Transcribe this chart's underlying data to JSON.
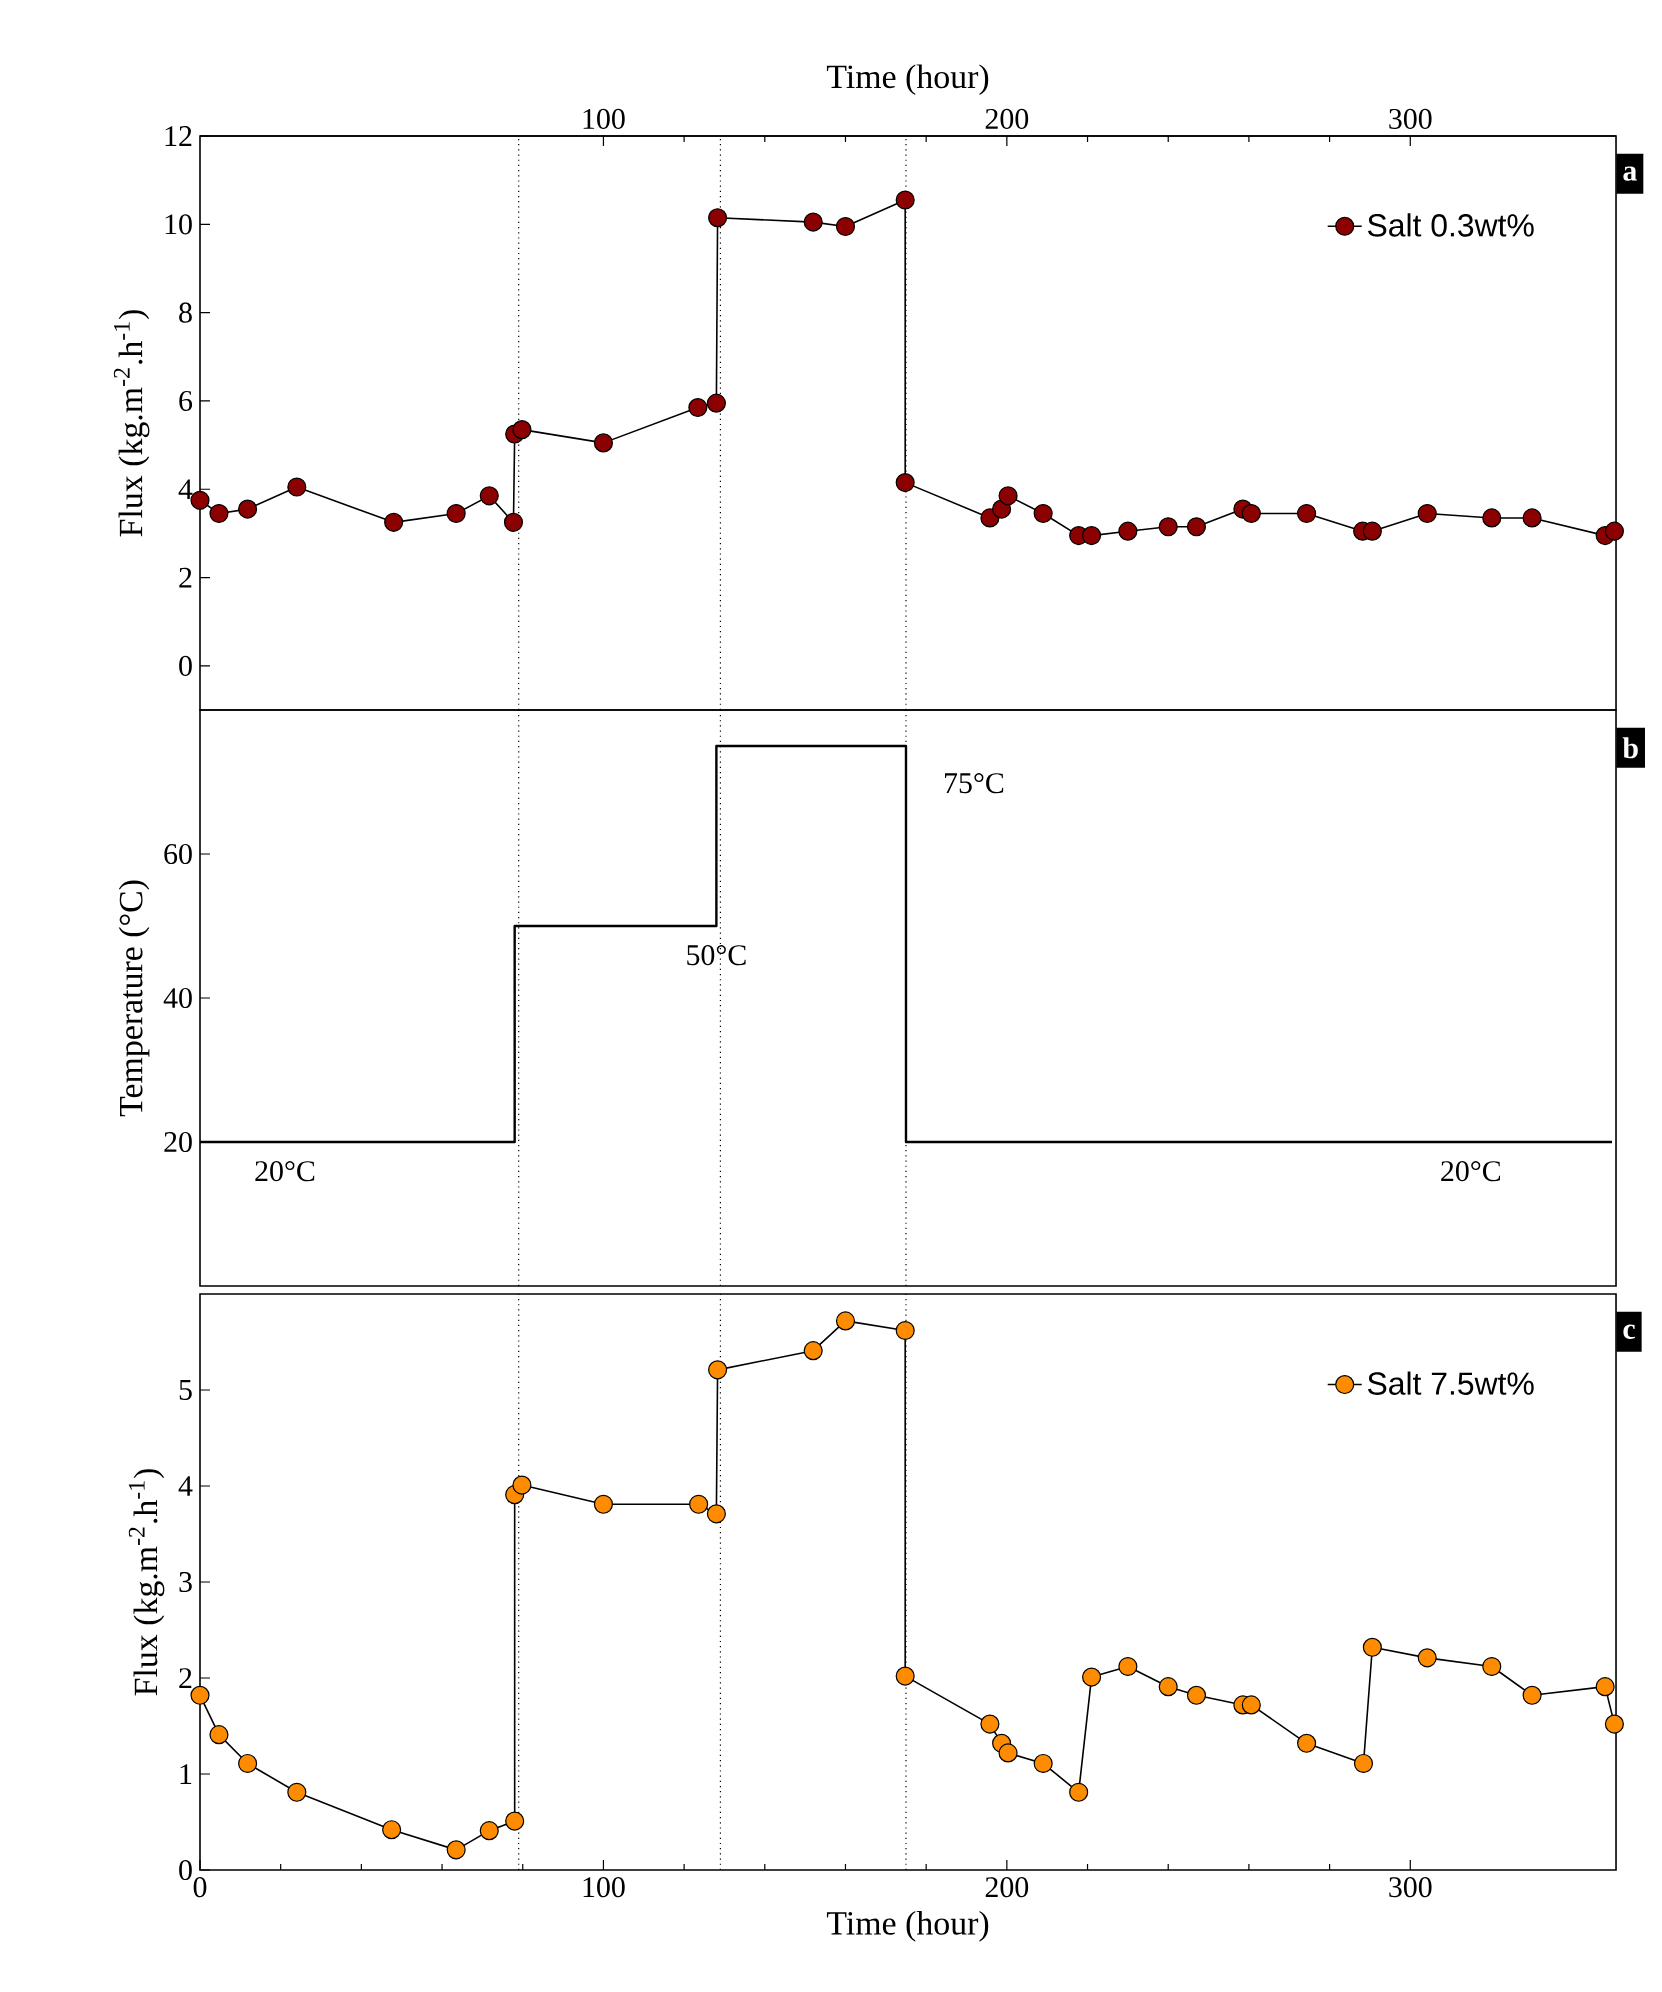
{
  "chart_data": [
    {
      "type": "line",
      "ylabel": "Flux (kg.m$^{-2}$.h$^{-1}$)",
      "x2label": "Time (hour)",
      "xlim": [
        0,
        351
      ],
      "x2lim": [
        0,
        351
      ],
      "x2ticks": [
        100,
        200,
        300
      ],
      "ylim": [
        -1,
        12
      ],
      "yticks": [
        0,
        2,
        4,
        6,
        8,
        10,
        12
      ],
      "marker": "circle",
      "legend": "top right",
      "series": [
        {
          "name": "Salt 0.3wt%",
          "color": "#8b0000",
          "x": [
            0,
            4.7,
            11.8,
            24,
            48,
            63.5,
            71.7,
            77.7,
            78,
            79.8,
            100,
            123.4,
            128,
            128.3,
            152,
            160,
            174.8,
            174.8,
            195.8,
            198.7,
            200.3,
            209,
            217.8,
            221,
            230,
            240,
            247,
            258.5,
            260.6,
            274.3,
            288.2,
            290.6,
            304.2,
            320.2,
            330.2,
            348.3,
            350.6
          ],
          "values": [
            3.75,
            3.45,
            3.55,
            4.05,
            3.25,
            3.45,
            3.85,
            3.25,
            5.25,
            5.35,
            5.05,
            5.85,
            5.95,
            10.15,
            10.05,
            9.95,
            10.55,
            4.15,
            3.35,
            3.55,
            3.85,
            3.45,
            2.95,
            2.95,
            3.05,
            3.15,
            3.15,
            3.55,
            3.45,
            3.45,
            3.05,
            3.05,
            3.45,
            3.35,
            3.35,
            2.95,
            3.05
          ]
        }
      ],
      "ref_lines": [
        {
          "axis": "x",
          "value": 79
        },
        {
          "axis": "x",
          "value": 129
        },
        {
          "axis": "x",
          "value": 175
        }
      ],
      "annotations": [
        "a"
      ]
    },
    {
      "type": "step",
      "ylabel": "Temperature (°C)",
      "xlim": [
        0,
        351
      ],
      "ylim": [
        0,
        80
      ],
      "yticks": [
        20,
        40,
        60
      ],
      "tick_labels": "y",
      "series": [
        {
          "color": "#000000",
          "x": [
            0,
            78,
            128,
            175,
            350
          ],
          "values": [
            20,
            50,
            75,
            20,
            20
          ]
        }
      ],
      "ref_lines": [
        {
          "axis": "x",
          "value": 79
        },
        {
          "axis": "x",
          "value": 129
        },
        {
          "axis": "x",
          "value": 175
        }
      ],
      "annotations": [
        "20°C",
        "50°C",
        "75°C",
        "20°C",
        "b"
      ]
    },
    {
      "type": "line",
      "xlabel": "Time (hour)",
      "ylabel": "Flux (kg.m$^{-2}$.h$^{-1}$)",
      "xlim": [
        0,
        351
      ],
      "xticks": [
        0,
        100,
        200,
        300
      ],
      "ylim": [
        0,
        6
      ],
      "yticks": [
        0,
        1,
        2,
        3,
        4,
        5
      ],
      "marker": "circle",
      "legend": "top right",
      "series": [
        {
          "name": "Salt 7.5wt%",
          "color": "#ff8c00",
          "x": [
            0,
            4.7,
            11.8,
            24,
            47.5,
            63.5,
            71.7,
            78,
            78,
            79.8,
            100,
            123.6,
            128,
            128.3,
            152,
            160,
            174.8,
            174.8,
            195.8,
            198.7,
            200.3,
            209,
            217.8,
            221,
            230,
            240,
            247,
            258.5,
            260.6,
            274.3,
            288.4,
            290.6,
            304.2,
            320.2,
            330.2,
            348.3,
            350.6
          ],
          "values": [
            1.82,
            1.41,
            1.11,
            0.81,
            0.42,
            0.21,
            0.41,
            0.51,
            3.91,
            4.01,
            3.81,
            3.81,
            3.71,
            5.21,
            5.41,
            5.72,
            5.62,
            2.02,
            1.52,
            1.32,
            1.22,
            1.11,
            0.81,
            2.01,
            2.12,
            1.91,
            1.82,
            1.72,
            1.72,
            1.32,
            1.11,
            2.32,
            2.21,
            2.12,
            1.82,
            1.91,
            1.52
          ]
        }
      ],
      "ref_lines": [
        {
          "axis": "x",
          "value": 79
        },
        {
          "axis": "x",
          "value": 129
        },
        {
          "axis": "x",
          "value": 175
        }
      ],
      "annotations": [
        "c"
      ]
    }
  ]
}
